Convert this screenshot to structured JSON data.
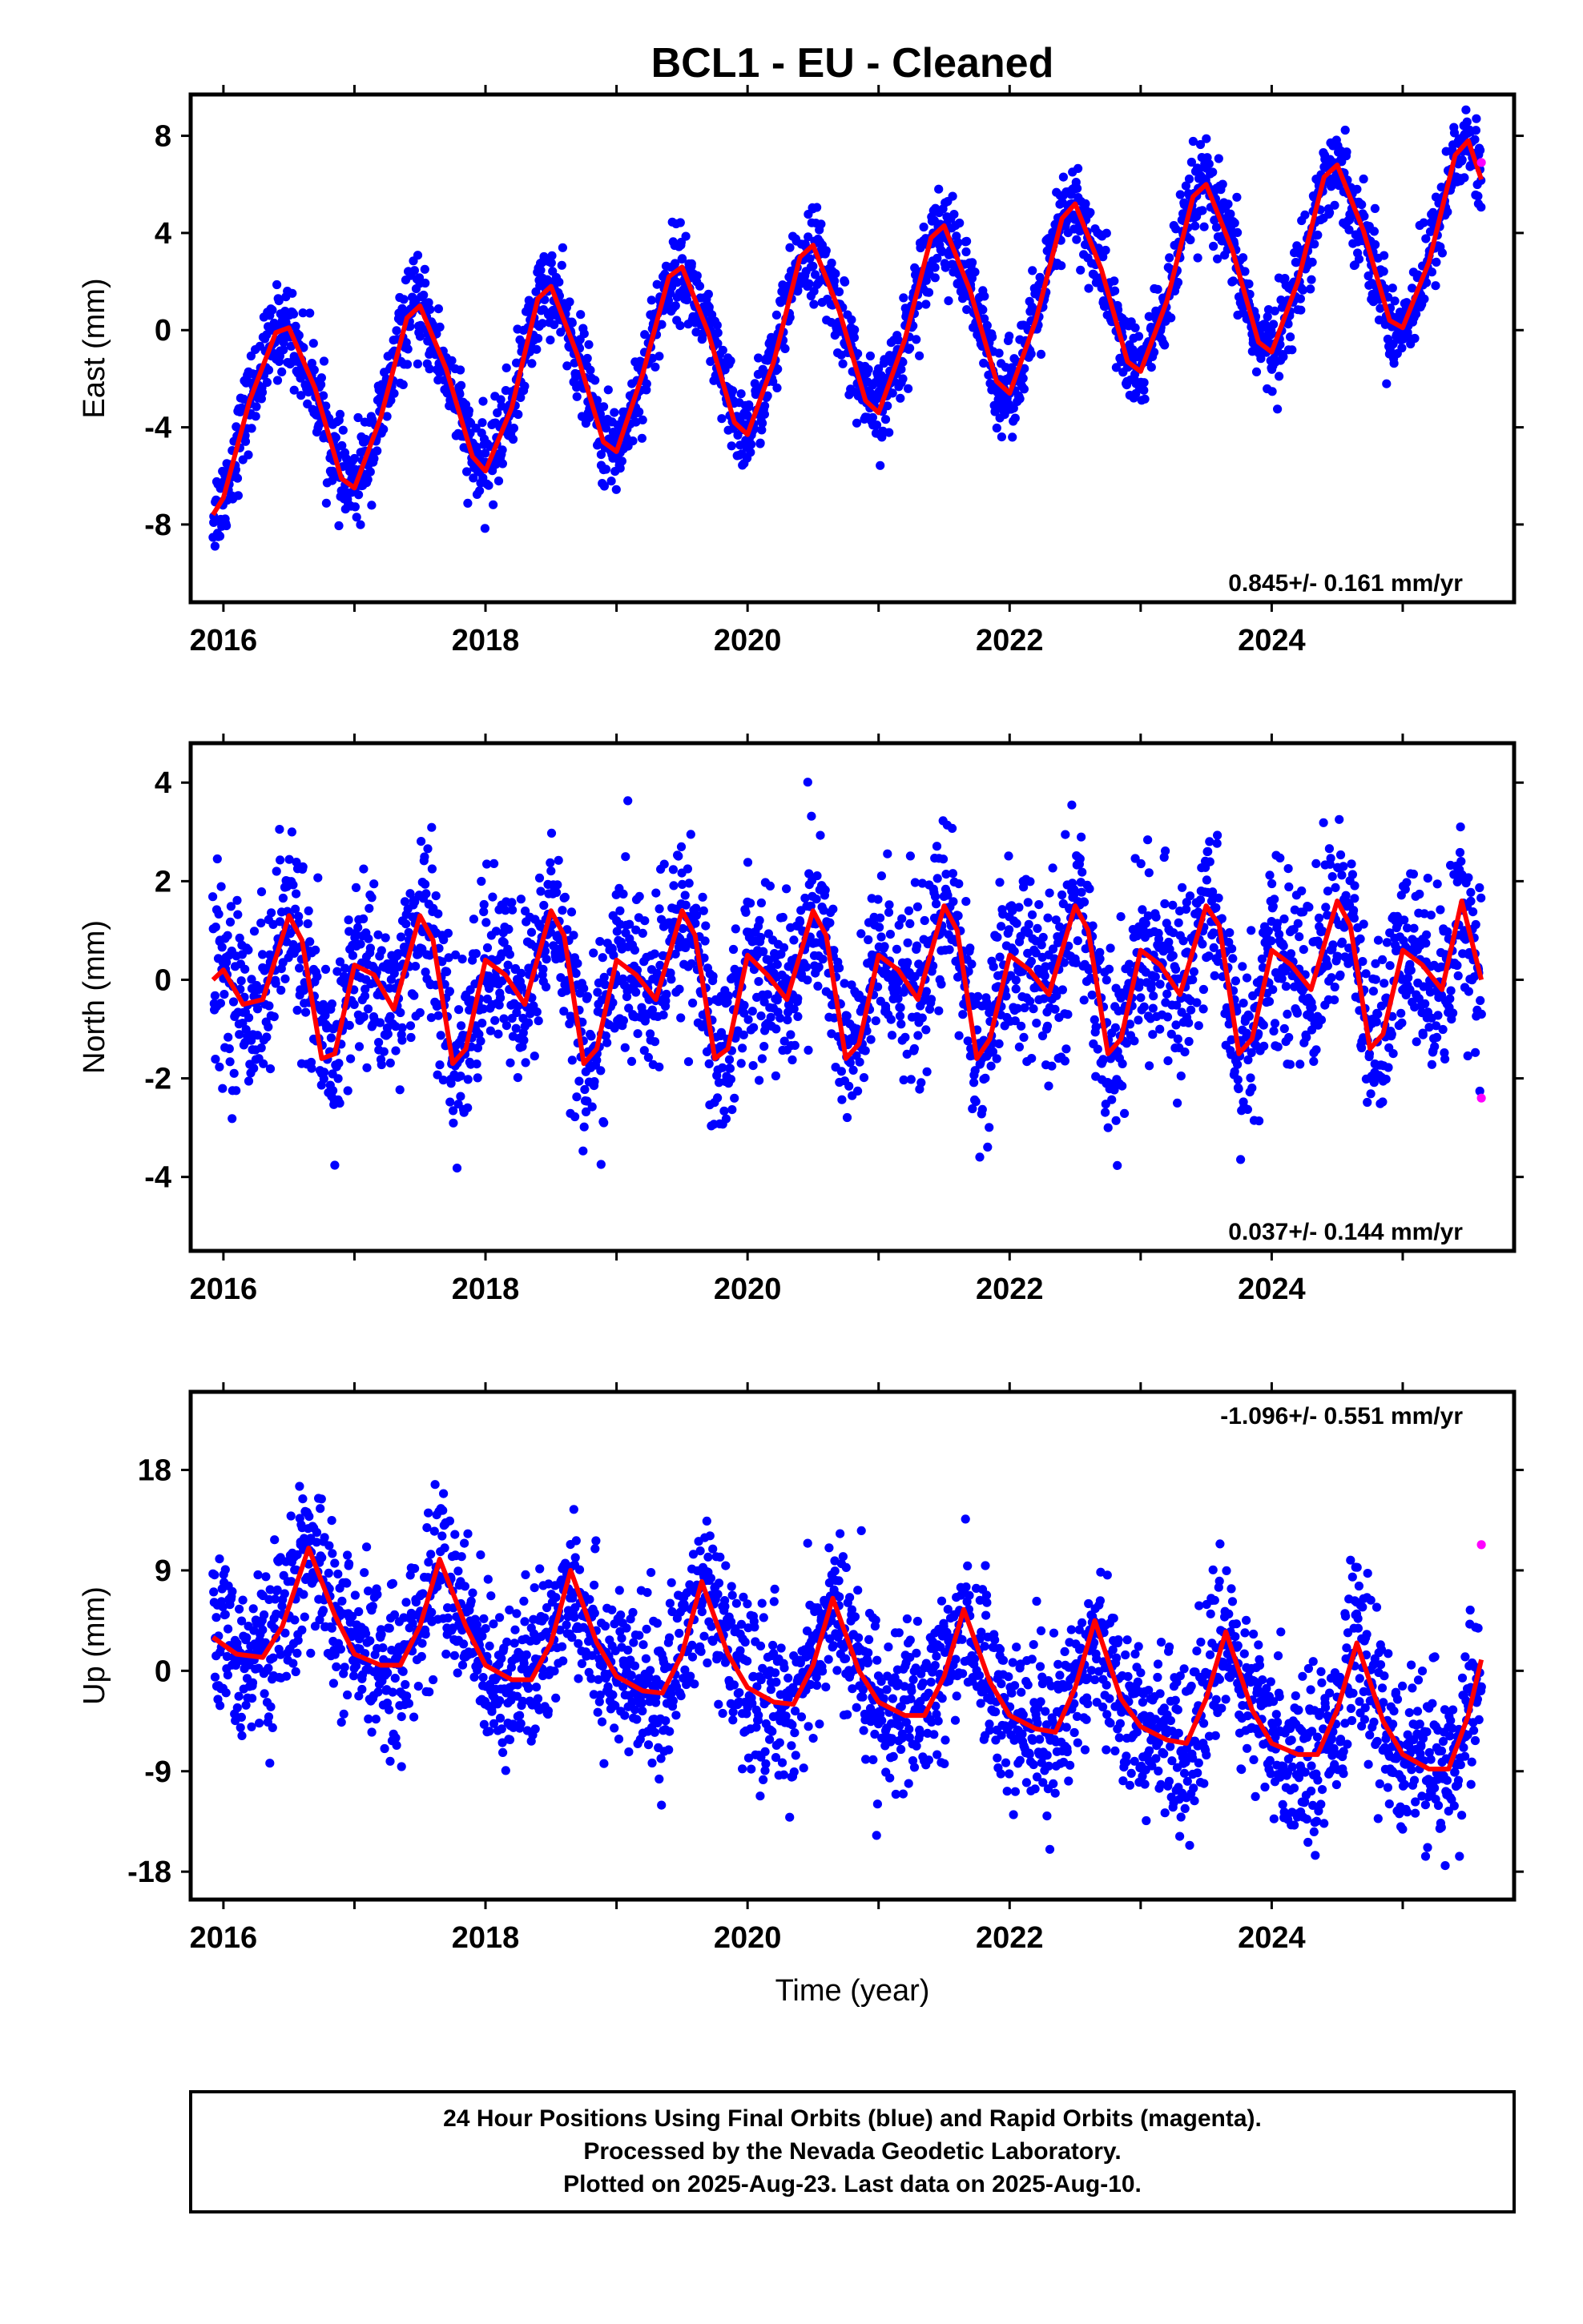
{
  "title": "BCL1  - EU - Cleaned",
  "xlabel": "Time (year)",
  "footer": {
    "line1": "24 Hour Positions Using Final Orbits (blue) and Rapid Orbits (magenta).",
    "line2": "Processed by the Nevada Geodetic Laboratory.",
    "line3": "Plotted on 2025-Aug-23. Last data on 2025-Aug-10."
  },
  "colors": {
    "final": "#0000ff",
    "rapid": "#ff00ff",
    "model": "#ff0000",
    "frame": "#000000"
  },
  "chart_data": [
    {
      "type": "scatter",
      "ylabel": "East (mm)",
      "rate_text": "0.845+/- 0.161 mm/yr",
      "rate_position": "bottom-right",
      "xlim": [
        2015.75,
        2025.85
      ],
      "ylim": [
        -11.2,
        9.7
      ],
      "xticks": [
        2016,
        2018,
        2020,
        2022,
        2024
      ],
      "yticks": [
        -8,
        -4,
        0,
        4,
        8
      ],
      "trend": {
        "intercept_at_2016": -3.3,
        "rate": 0.845
      },
      "model_curve": {
        "x": [
          2015.92,
          2016.0,
          2016.2,
          2016.4,
          2016.5,
          2016.7,
          2016.9,
          2017.0,
          2017.2,
          2017.4,
          2017.5,
          2017.7,
          2017.9,
          2018.0,
          2018.2,
          2018.4,
          2018.5,
          2018.7,
          2018.9,
          2019.0,
          2019.2,
          2019.4,
          2019.5,
          2019.7,
          2019.9,
          2020.0,
          2020.2,
          2020.4,
          2020.5,
          2020.7,
          2020.9,
          2021.0,
          2021.2,
          2021.4,
          2021.5,
          2021.7,
          2021.9,
          2022.0,
          2022.2,
          2022.4,
          2022.5,
          2022.7,
          2022.9,
          2023.0,
          2023.2,
          2023.4,
          2023.5,
          2023.7,
          2023.9,
          2024.0,
          2024.2,
          2024.4,
          2024.5,
          2024.7,
          2024.9,
          2025.0,
          2025.2,
          2025.4,
          2025.5,
          2025.6
        ],
        "y": [
          -7.6,
          -6.9,
          -2.9,
          -0.1,
          0.1,
          -2.4,
          -6.1,
          -6.5,
          -3.6,
          0.5,
          1.0,
          -1.6,
          -5.2,
          -5.8,
          -3.2,
          1.3,
          1.8,
          -1.0,
          -4.6,
          -5.0,
          -1.8,
          2.2,
          2.6,
          -0.1,
          -3.8,
          -4.3,
          -1.3,
          3.0,
          3.5,
          0.8,
          -2.9,
          -3.4,
          -0.4,
          3.8,
          4.3,
          1.6,
          -2.1,
          -2.6,
          0.4,
          4.6,
          5.2,
          2.5,
          -1.3,
          -1.7,
          1.2,
          5.5,
          6.0,
          3.3,
          -0.5,
          -0.9,
          2.0,
          6.3,
          6.8,
          4.1,
          0.4,
          0.1,
          2.8,
          7.2,
          7.8,
          6.2
        ]
      },
      "amplitude": 3.6,
      "scatter_sigma": 0.9,
      "rapid_points": [
        {
          "x": 2025.6,
          "y": 6.9
        }
      ]
    },
    {
      "type": "scatter",
      "ylabel": "North (mm)",
      "rate_text": "0.037+/- 0.144 mm/yr",
      "rate_position": "bottom-right",
      "xlim": [
        2015.75,
        2025.85
      ],
      "ylim": [
        -5.5,
        4.8
      ],
      "xticks": [
        2016,
        2018,
        2020,
        2022,
        2024
      ],
      "yticks": [
        -4,
        -2,
        0,
        2,
        4
      ],
      "model_curve": {
        "x": [
          2015.92,
          2016.0,
          2016.15,
          2016.3,
          2016.5,
          2016.6,
          2016.75,
          2016.85,
          2017.0,
          2017.15,
          2017.3,
          2017.5,
          2017.6,
          2017.75,
          2017.85,
          2018.0,
          2018.15,
          2018.3,
          2018.5,
          2018.6,
          2018.75,
          2018.85,
          2019.0,
          2019.15,
          2019.3,
          2019.5,
          2019.6,
          2019.75,
          2019.85,
          2020.0,
          2020.15,
          2020.3,
          2020.5,
          2020.6,
          2020.75,
          2020.85,
          2021.0,
          2021.15,
          2021.3,
          2021.5,
          2021.6,
          2021.75,
          2021.85,
          2022.0,
          2022.15,
          2022.3,
          2022.5,
          2022.6,
          2022.75,
          2022.85,
          2023.0,
          2023.15,
          2023.3,
          2023.5,
          2023.6,
          2023.75,
          2023.85,
          2024.0,
          2024.15,
          2024.3,
          2024.5,
          2024.6,
          2024.75,
          2024.85,
          2025.0,
          2025.15,
          2025.3,
          2025.45,
          2025.6
        ],
        "y": [
          0.0,
          0.2,
          -0.5,
          -0.4,
          1.3,
          0.8,
          -1.6,
          -1.5,
          0.3,
          0.1,
          -0.6,
          1.3,
          0.8,
          -1.7,
          -1.4,
          0.4,
          0.1,
          -0.5,
          1.4,
          0.9,
          -1.7,
          -1.4,
          0.4,
          0.1,
          -0.4,
          1.4,
          0.9,
          -1.6,
          -1.4,
          0.5,
          0.1,
          -0.4,
          1.4,
          0.9,
          -1.6,
          -1.3,
          0.5,
          0.2,
          -0.4,
          1.5,
          1.0,
          -1.6,
          -1.2,
          0.5,
          0.2,
          -0.3,
          1.5,
          1.0,
          -1.5,
          -1.2,
          0.6,
          0.3,
          -0.3,
          1.5,
          1.1,
          -1.5,
          -1.2,
          0.6,
          0.3,
          -0.2,
          1.6,
          1.1,
          -1.4,
          -1.1,
          0.6,
          0.3,
          -0.2,
          1.6,
          0.0
        ]
      },
      "scatter_sigma": 0.9,
      "rapid_points": [
        {
          "x": 2025.6,
          "y": -2.4
        }
      ]
    },
    {
      "type": "scatter",
      "ylabel": "Up (mm)",
      "rate_text": "-1.096+/- 0.551 mm/yr",
      "rate_position": "top-right",
      "xlim": [
        2015.75,
        2025.85
      ],
      "ylim": [
        -20.5,
        25
      ],
      "xticks": [
        2016,
        2018,
        2020,
        2022,
        2024
      ],
      "yticks": [
        -18,
        -9,
        0,
        9,
        18
      ],
      "model_curve": {
        "x": [
          2015.92,
          2016.1,
          2016.3,
          2016.45,
          2016.65,
          2016.85,
          2017.0,
          2017.2,
          2017.35,
          2017.5,
          2017.65,
          2017.85,
          2018.0,
          2018.2,
          2018.35,
          2018.5,
          2018.65,
          2018.85,
          2019.0,
          2019.2,
          2019.35,
          2019.5,
          2019.65,
          2019.85,
          2020.0,
          2020.2,
          2020.35,
          2020.5,
          2020.65,
          2020.85,
          2021.0,
          2021.2,
          2021.35,
          2021.5,
          2021.65,
          2021.85,
          2022.0,
          2022.2,
          2022.35,
          2022.5,
          2022.65,
          2022.85,
          2023.0,
          2023.2,
          2023.35,
          2023.5,
          2023.65,
          2023.85,
          2024.0,
          2024.2,
          2024.35,
          2024.5,
          2024.65,
          2024.85,
          2025.0,
          2025.2,
          2025.35,
          2025.5,
          2025.6
        ],
        "y": [
          3.0,
          1.5,
          1.2,
          4.0,
          11.0,
          5.0,
          1.5,
          0.5,
          0.5,
          4.0,
          10.0,
          4.0,
          0.5,
          -0.8,
          -0.8,
          2.5,
          9.0,
          2.5,
          -0.5,
          -1.8,
          -2.0,
          1.5,
          8.0,
          1.5,
          -1.5,
          -2.8,
          -3.0,
          0.5,
          6.5,
          0.0,
          -2.8,
          -4.0,
          -4.0,
          -0.5,
          5.5,
          -1.0,
          -4.0,
          -5.2,
          -5.5,
          -1.5,
          4.5,
          -2.5,
          -5.0,
          -6.2,
          -6.5,
          -2.5,
          3.5,
          -3.5,
          -6.5,
          -7.5,
          -7.5,
          -3.5,
          2.5,
          -4.5,
          -7.5,
          -8.8,
          -8.8,
          -4.0,
          1.0
        ]
      },
      "scatter_sigma": 3.6,
      "rapid_points": [
        {
          "x": 2025.6,
          "y": 11.3
        }
      ]
    }
  ]
}
